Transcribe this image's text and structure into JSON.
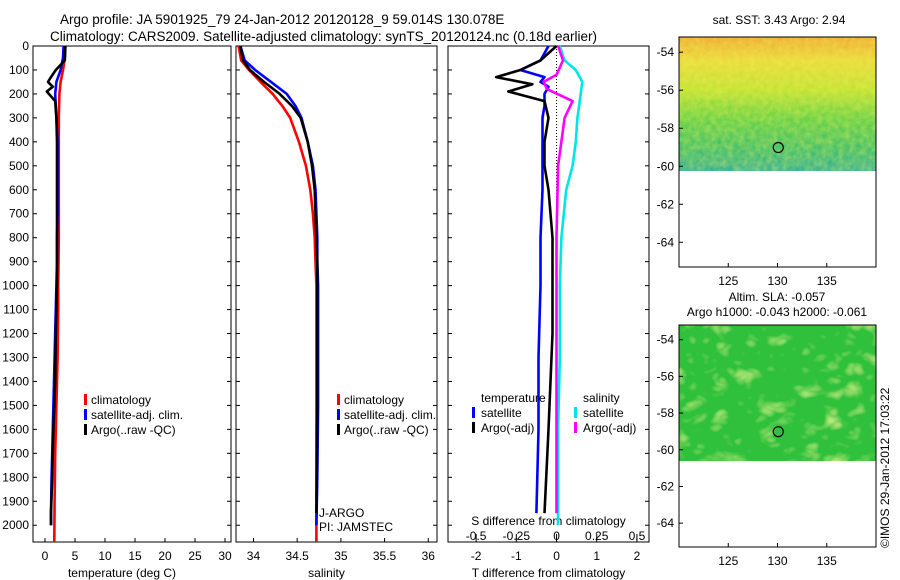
{
  "header": {
    "line1": "Argo profile: JA 5901925_79 24-Jan-2012 20120128_9 59.014S 130.078E",
    "line2": "Climatology: CARS2009. Satellite-adjusted climatology: synTS_20120124.nc (0.18d earlier)"
  },
  "credit": "©IMOS 29-Jan-2012 17:03:22",
  "colors": {
    "climatology": "#ff0000",
    "satellite": "#0000ff",
    "argo": "#000000",
    "sat_salinity": "#00e5e5",
    "argo_salinity": "#ff00ff"
  },
  "chart_data": [
    {
      "type": "line",
      "id": "temperature",
      "xlabel": "temperature (deg C)",
      "xlim": [
        -2,
        31
      ],
      "xticks": [
        0,
        5,
        10,
        15,
        20,
        25,
        30
      ],
      "ylim": [
        2070,
        0
      ],
      "yticks": [
        0,
        100,
        200,
        300,
        400,
        500,
        600,
        700,
        800,
        900,
        1000,
        1100,
        1200,
        1300,
        1400,
        1500,
        1600,
        1700,
        1800,
        1900,
        2000
      ],
      "legend": [
        "climatology",
        "satellite-adj. clim.",
        "Argo(..raw -QC)"
      ],
      "series": [
        {
          "name": "climatology",
          "color": "#ff0000",
          "x": [
            3.4,
            3.3,
            3.0,
            2.6,
            2.4,
            2.3,
            2.3,
            2.3,
            2.3,
            2.3,
            2.3,
            2.25,
            2.2,
            2.2,
            2.15,
            2.1,
            2.0,
            1.9,
            1.8,
            1.7,
            1.6,
            1.55
          ],
          "y": [
            0,
            50,
            100,
            150,
            200,
            300,
            400,
            500,
            600,
            700,
            800,
            900,
            1000,
            1100,
            1200,
            1300,
            1400,
            1500,
            1600,
            1700,
            1900,
            2070
          ]
        },
        {
          "name": "satellite-adj. clim.",
          "color": "#0000ff",
          "x": [
            3.1,
            3.0,
            2.6,
            1.9,
            1.7,
            1.9,
            2.1,
            2.1,
            2.1,
            2.1,
            2.0,
            2.0,
            1.9,
            1.8,
            1.7,
            1.5,
            1.3,
            1.1,
            1.0,
            1.0
          ],
          "y": [
            0,
            50,
            100,
            150,
            200,
            300,
            400,
            500,
            600,
            700,
            800,
            900,
            1000,
            1100,
            1200,
            1400,
            1600,
            1800,
            1950,
            2000
          ]
        },
        {
          "name": "Argo(..raw -QC)",
          "color": "#000000",
          "x": [
            3.4,
            3.3,
            1.8,
            1.0,
            0.5,
            1.3,
            0.3,
            1.7,
            1.9,
            2.0,
            2.0,
            2.0,
            2.0,
            1.9,
            1.8,
            1.7,
            1.4,
            1.2,
            1.0,
            1.0
          ],
          "y": [
            0,
            60,
            100,
            130,
            150,
            170,
            190,
            230,
            300,
            400,
            600,
            800,
            1000,
            1100,
            1200,
            1400,
            1600,
            1800,
            1950,
            2000
          ]
        }
      ]
    },
    {
      "type": "line",
      "id": "salinity",
      "xlabel": "salinity",
      "xlim": [
        33.8,
        36.1
      ],
      "xticks": [
        34,
        34.5,
        35,
        35.5,
        36
      ],
      "ylim": [
        2070,
        0
      ],
      "legend": [
        "climatology",
        "satellite-adj. clim.",
        "Argo(..raw -QC)"
      ],
      "annotations": [
        "J-ARGO",
        "PI: JAMSTEC"
      ],
      "series": [
        {
          "name": "climatology",
          "color": "#ff0000",
          "x": [
            33.83,
            33.86,
            33.95,
            34.08,
            34.22,
            34.33,
            34.42,
            34.52,
            34.6,
            34.65,
            34.68,
            34.7,
            34.71,
            34.72,
            34.72,
            34.72,
            34.72,
            34.72,
            34.72
          ],
          "y": [
            0,
            60,
            100,
            150,
            200,
            250,
            300,
            400,
            500,
            600,
            700,
            800,
            900,
            1000,
            1200,
            1400,
            1600,
            1800,
            2070
          ]
        },
        {
          "name": "satellite-adj. clim.",
          "color": "#0000ff",
          "x": [
            33.85,
            33.9,
            34.02,
            34.2,
            34.38,
            34.48,
            34.55,
            34.62,
            34.68,
            34.71,
            34.72,
            34.73,
            34.73,
            34.74,
            34.74,
            34.74,
            34.73,
            34.72
          ],
          "y": [
            0,
            60,
            100,
            150,
            200,
            250,
            300,
            400,
            500,
            600,
            700,
            800,
            900,
            1000,
            1200,
            1500,
            1800,
            2000
          ]
        },
        {
          "name": "Argo(..raw -QC)",
          "color": "#000000",
          "x": [
            33.85,
            33.88,
            33.96,
            34.12,
            34.3,
            34.44,
            34.54,
            34.62,
            34.67,
            34.7,
            34.71,
            34.72,
            34.73,
            34.73,
            34.73,
            34.73,
            34.72
          ],
          "y": [
            0,
            60,
            100,
            150,
            200,
            250,
            300,
            400,
            500,
            600,
            700,
            800,
            900,
            1000,
            1200,
            1500,
            1950
          ]
        }
      ]
    },
    {
      "type": "line",
      "id": "difference",
      "xlabel": "T difference from climatology",
      "xlabel_top": "S difference from climatology",
      "xlim": [
        -2.7,
        2.3
      ],
      "xticks": [
        -2,
        -1,
        0,
        1,
        2
      ],
      "xlim_top": [
        -0.675,
        0.575
      ],
      "xticks_top": [
        -0.5,
        -0.25,
        0,
        0.25,
        0.5
      ],
      "xticklabels_top": [
        "-0.5",
        "-0.25",
        "0",
        "0.25",
        "0.5"
      ],
      "ylim": [
        2070,
        0
      ],
      "legend_temperature_title": "temperature",
      "legend_salinity_title": "salinity",
      "legend_temperature": [
        "satellite",
        "Argo(-adj)"
      ],
      "legend_salinity": [
        "satellite",
        "Argo(-adj)"
      ],
      "series": [
        {
          "name": "satellite",
          "color": "#0000ff",
          "x": [
            -0.2,
            -0.4,
            -0.9,
            -0.3,
            -0.4,
            -0.2,
            -0.3,
            -0.3,
            -0.35,
            -0.35,
            -0.35,
            -0.4,
            -0.4,
            -0.45,
            -0.45,
            -0.5
          ],
          "y": [
            0,
            60,
            100,
            130,
            150,
            170,
            200,
            250,
            300,
            400,
            600,
            800,
            1000,
            1300,
            1600,
            1950
          ]
        },
        {
          "name": "Argo(-adj)",
          "color": "#000000",
          "x": [
            0,
            -0.4,
            -0.9,
            -1.5,
            -0.6,
            -1.2,
            -0.3,
            -0.2,
            -0.3,
            -0.3,
            -0.2,
            -0.1,
            -0.1,
            -0.1,
            -0.2,
            -0.3
          ],
          "y": [
            0,
            60,
            100,
            130,
            160,
            190,
            230,
            300,
            400,
            500,
            600,
            800,
            1000,
            1200,
            1600,
            1950
          ]
        },
        {
          "name": "satellite",
          "color": "#00e5e5",
          "x": [
            0.02,
            0.05,
            0.12,
            0.16,
            0.15,
            0.14,
            0.13,
            0.12,
            0.1,
            0.06,
            0.03,
            0.02,
            0.02,
            0.01,
            0.01
          ],
          "y": [
            0,
            60,
            100,
            150,
            200,
            250,
            300,
            400,
            500,
            600,
            800,
            1000,
            1300,
            1600,
            2000
          ]
        },
        {
          "name": "Argo(-adj)",
          "color": "#ff00ff",
          "x": [
            0.01,
            0.04,
            0.0,
            -0.08,
            -0.06,
            0.1,
            0.05,
            0.01,
            0.0,
            0.0
          ],
          "y": [
            0,
            60,
            120,
            150,
            180,
            230,
            300,
            500,
            800,
            1950
          ]
        }
      ]
    },
    {
      "type": "heatmap",
      "id": "sst_map",
      "title": "sat. SST: 3.43 Argo: 2.94",
      "xticks": [
        125,
        130,
        135
      ],
      "yticks": [
        -54,
        -56,
        -58,
        -60,
        -62,
        -64
      ],
      "xlim": [
        120,
        140
      ],
      "ylim": [
        -65.3,
        -53.2
      ],
      "data_extent_lat": [
        -60.1,
        -53.2
      ],
      "marker": {
        "lon": 130.078,
        "lat": -59.014
      }
    },
    {
      "type": "heatmap",
      "id": "sla_map",
      "title": "Altim. SLA: -0.057",
      "subtitle": "Argo h1000: -0.043 h2000: -0.061",
      "xticks": [
        125,
        130,
        135
      ],
      "yticks": [
        -54,
        -56,
        -58,
        -60,
        -62,
        -64
      ],
      "xlim": [
        120,
        140
      ],
      "ylim": [
        -65.3,
        -53.2
      ],
      "data_extent_lat": [
        -60.1,
        -53.2
      ],
      "marker": {
        "lon": 130.078,
        "lat": -59.014
      }
    }
  ]
}
